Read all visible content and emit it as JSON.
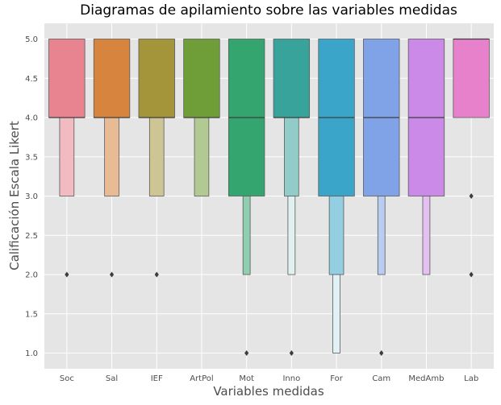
{
  "chart_data": {
    "type": "boxenplot",
    "title": "Diagramas de apilamiento sobre las variables medidas",
    "xlabel": "Variables medidas",
    "ylabel": "Calificación Escala Likert",
    "ylim": [
      0.8,
      5.2
    ],
    "yticks": [
      1.0,
      1.5,
      2.0,
      2.5,
      3.0,
      3.5,
      4.0,
      4.5,
      5.0
    ],
    "ytick_labels": [
      "1.0",
      "1.5",
      "2.0",
      "2.5",
      "3.0",
      "3.5",
      "4.0",
      "4.5",
      "5.0"
    ],
    "grid": true,
    "categories": [
      {
        "name": "Soc",
        "color": "#e8848f",
        "median": 4.0,
        "boxes": [
          [
            4.0,
            5.0,
            1.0
          ],
          [
            3.0,
            4.0,
            0.4
          ]
        ],
        "outliers": [
          2.0
        ]
      },
      {
        "name": "Sal",
        "color": "#d7843f",
        "median": 4.0,
        "boxes": [
          [
            4.0,
            5.0,
            1.0
          ],
          [
            3.0,
            4.0,
            0.4
          ]
        ],
        "outliers": [
          2.0
        ]
      },
      {
        "name": "IEF",
        "color": "#a4953a",
        "median": 4.0,
        "boxes": [
          [
            4.0,
            5.0,
            1.0
          ],
          [
            3.0,
            4.0,
            0.4
          ]
        ],
        "outliers": [
          2.0
        ]
      },
      {
        "name": "ArtPol",
        "color": "#6f9e38",
        "median": 4.0,
        "boxes": [
          [
            4.0,
            5.0,
            1.0
          ],
          [
            3.0,
            4.0,
            0.4
          ]
        ],
        "outliers": []
      },
      {
        "name": "Mot",
        "color": "#34a56e",
        "median": 4.0,
        "boxes": [
          [
            3.0,
            5.0,
            1.0
          ],
          [
            2.0,
            3.0,
            0.2
          ]
        ],
        "outliers": [
          1.0
        ]
      },
      {
        "name": "Inno",
        "color": "#37a39b",
        "median": 4.0,
        "boxes": [
          [
            4.0,
            5.0,
            1.0
          ],
          [
            3.0,
            4.0,
            0.4
          ],
          [
            2.0,
            3.0,
            0.2
          ]
        ],
        "outliers": [
          1.0
        ]
      },
      {
        "name": "For",
        "color": "#3aa5c8",
        "median": 4.0,
        "boxes": [
          [
            3.0,
            5.0,
            1.0
          ],
          [
            2.0,
            3.0,
            0.4
          ],
          [
            1.0,
            2.0,
            0.2
          ]
        ],
        "outliers": []
      },
      {
        "name": "Cam",
        "color": "#80a3e8",
        "median": 4.0,
        "boxes": [
          [
            3.0,
            5.0,
            1.0
          ],
          [
            2.0,
            3.0,
            0.2
          ]
        ],
        "outliers": [
          1.0
        ]
      },
      {
        "name": "MedAmb",
        "color": "#cc8ae8",
        "median": 4.0,
        "boxes": [
          [
            3.0,
            5.0,
            1.0
          ],
          [
            2.0,
            3.0,
            0.2
          ]
        ],
        "outliers": []
      },
      {
        "name": "Lab",
        "color": "#e881cb",
        "median": 5.0,
        "boxes": [
          [
            4.0,
            5.0,
            1.0
          ]
        ],
        "outliers": [
          3.0,
          2.0
        ]
      }
    ]
  }
}
